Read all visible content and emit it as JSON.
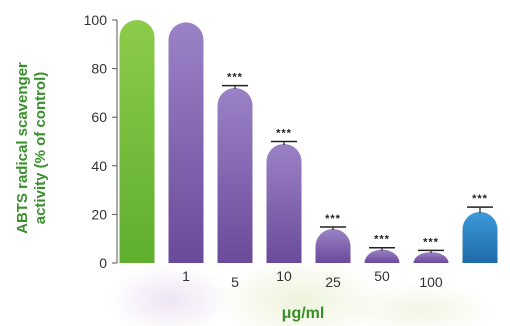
{
  "chart_data": {
    "type": "bar",
    "categories": [
      "",
      "1",
      "5",
      "10",
      "25",
      "50",
      "100",
      ""
    ],
    "values": [
      100,
      99,
      72,
      49,
      14,
      5.5,
      4.5,
      21
    ],
    "errors": [
      0,
      0,
      1,
      1,
      0.8,
      0.8,
      0.7,
      2
    ],
    "significance": [
      "",
      "",
      "***",
      "***",
      "***",
      "***",
      "***",
      "***"
    ],
    "colors": [
      "#7ec242",
      "#8e70b8",
      "#8e70b8",
      "#8e70b8",
      "#8e70b8",
      "#8e70b8",
      "#8e70b8",
      "#2c86c8"
    ],
    "ylim": [
      0,
      100
    ],
    "yticks": [
      0,
      20,
      40,
      60,
      80,
      100
    ],
    "ylabel_line1": "ABTS radical scavenger",
    "ylabel_line2": "activity (% of control)",
    "xlabel": "μg/ml",
    "grid": false
  }
}
